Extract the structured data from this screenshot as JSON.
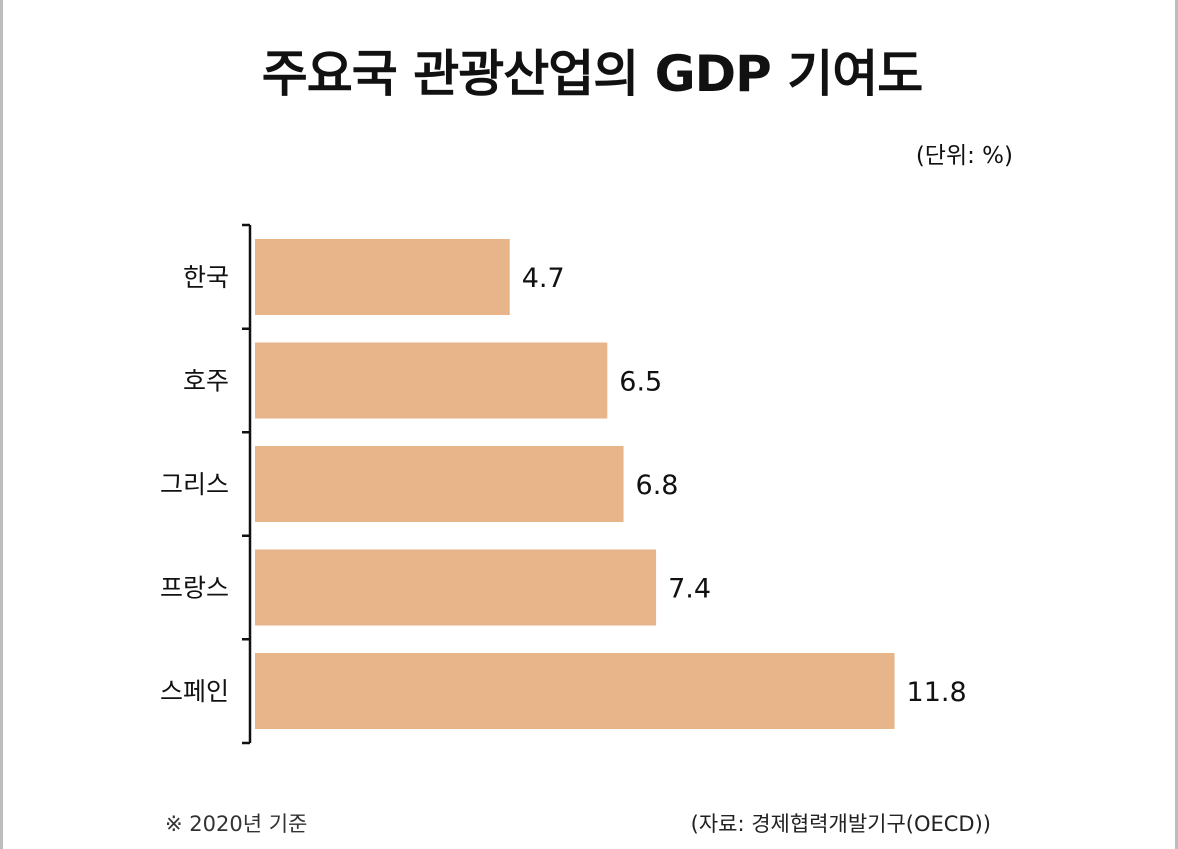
{
  "title": "주요국 관광산업의 GDP 기여도",
  "unit_label": "(단위: %)",
  "footnote": "※ 2020년 기준",
  "source": "(자료: 경제협력개발기구(OECD))",
  "colors": {
    "bar": "#E8B489",
    "axis": "#111111"
  },
  "chart_data": {
    "type": "bar",
    "orientation": "horizontal",
    "categories": [
      "한국",
      "호주",
      "그리스",
      "프랑스",
      "스페인"
    ],
    "values": [
      4.7,
      6.5,
      6.8,
      7.4,
      11.8
    ],
    "value_labels": [
      "4.7",
      "6.5",
      "6.8",
      "7.4",
      "11.8"
    ],
    "title": "주요국 관광산업의 GDP 기여도",
    "xlabel": "",
    "ylabel": "",
    "xlim": [
      0,
      11.8
    ],
    "grid": false,
    "legend": "none"
  }
}
